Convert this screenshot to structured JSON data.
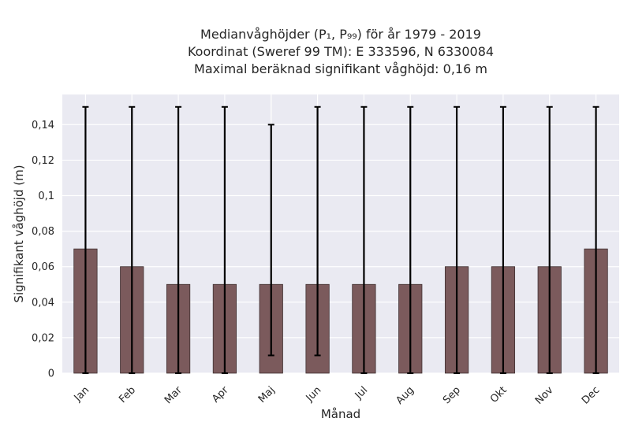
{
  "chart_data": {
    "type": "bar",
    "title_lines": [
      "Medianvåghöjder (P₁, P₉₉) för år 1979 - 2019",
      "Koordinat (Sweref 99 TM): E 333596, N 6330084",
      "Maximal beräknad signifikant våghöjd: 0,16 m"
    ],
    "xlabel": "Månad",
    "ylabel": "Signifikant våghöjd (m)",
    "categories": [
      "Jan",
      "Feb",
      "Mar",
      "Apr",
      "Maj",
      "Jun",
      "Jul",
      "Aug",
      "Sep",
      "Okt",
      "Nov",
      "Dec"
    ],
    "values": [
      0.07,
      0.06,
      0.05,
      0.05,
      0.05,
      0.05,
      0.05,
      0.05,
      0.06,
      0.06,
      0.06,
      0.07
    ],
    "error_low": [
      0,
      0,
      0,
      0,
      0.01,
      0.01,
      0,
      0,
      0,
      0,
      0,
      0
    ],
    "error_high": [
      0.15,
      0.15,
      0.15,
      0.15,
      0.14,
      0.15,
      0.15,
      0.15,
      0.15,
      0.15,
      0.15,
      0.15
    ],
    "ylim": [
      0,
      0.157
    ],
    "yticks": [
      0,
      0.02,
      0.04,
      0.06,
      0.08,
      0.1,
      0.12,
      0.14
    ],
    "ytick_labels": [
      "0",
      "0,02",
      "0,04",
      "0,06",
      "0,08",
      "0,1",
      "0,12",
      "0,14"
    ],
    "grid": true,
    "colors": {
      "bar": "#7b5a5c",
      "plot_bg": "#eaeaf2",
      "grid": "#ffffff",
      "error": "#000000"
    }
  }
}
